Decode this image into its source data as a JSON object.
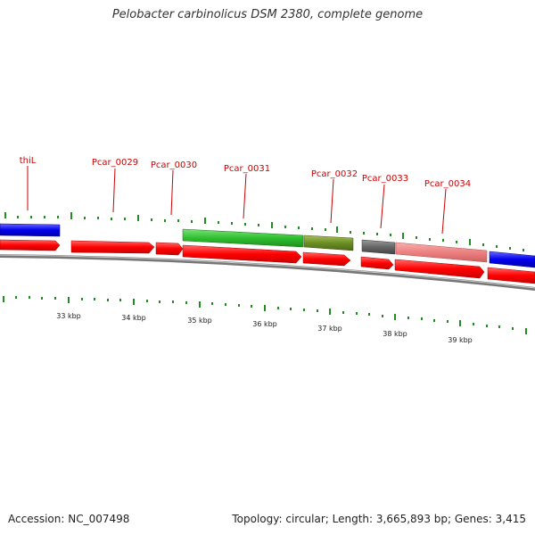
{
  "title": "Pelobacter carbinolicus DSM 2380, complete genome",
  "footer": {
    "accession": "Accession: NC_007498",
    "info": "Topology: circular; Length: 3,665,893 bp; Genes: 3,415"
  },
  "colors": {
    "cds_strand": "#ff0000",
    "tick": "#228b22",
    "label": "#cc0000",
    "backbone": "#888888"
  },
  "gene_labels": [
    "thiL",
    "Pcar_0029",
    "Pcar_0030",
    "Pcar_0031",
    "Pcar_0032",
    "Pcar_0033",
    "Pcar_0034"
  ],
  "kbp_labels": [
    "33 kbp",
    "34 kbp",
    "35 kbp",
    "36 kbp",
    "37 kbp",
    "38 kbp",
    "39 kbp"
  ]
}
